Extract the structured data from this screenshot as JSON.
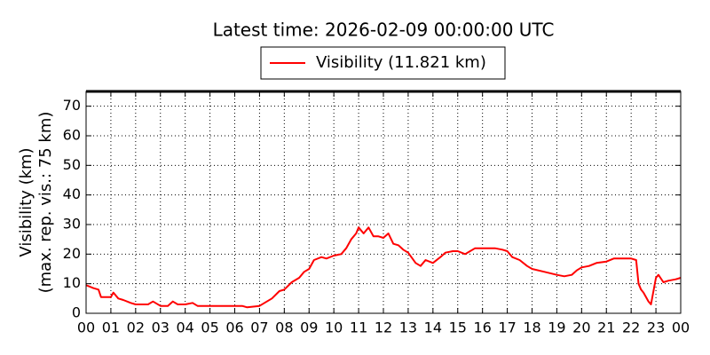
{
  "chart_data": {
    "type": "line",
    "title": "Latest time: 2026-02-09 00:00:00 UTC",
    "ylabel_lines": [
      "Visibility (km)",
      "(max. rep. vis.: 75 km)"
    ],
    "x": [
      0,
      0.3,
      0.5,
      0.6,
      1,
      1.1,
      1.3,
      1.5,
      1.8,
      2,
      2.5,
      2.7,
      3,
      3.3,
      3.5,
      3.7,
      4,
      4.3,
      4.5,
      5,
      5.5,
      6,
      6.3,
      6.5,
      7,
      7.2,
      7.5,
      7.8,
      8,
      8.3,
      8.6,
      8.8,
      9,
      9.2,
      9.5,
      9.7,
      10,
      10.3,
      10.5,
      10.7,
      10.9,
      11,
      11.2,
      11.4,
      11.6,
      11.8,
      12,
      12.2,
      12.4,
      12.6,
      12.8,
      13,
      13.3,
      13.5,
      13.7,
      14,
      14.3,
      14.5,
      14.8,
      15,
      15.3,
      15.5,
      15.7,
      16,
      16.5,
      16.8,
      17,
      17.2,
      17.5,
      17.8,
      18,
      18.5,
      19,
      19.3,
      19.6,
      19.8,
      20,
      20.3,
      20.6,
      21,
      21.3,
      21.6,
      22,
      22.2,
      22.3,
      22.4,
      22.5,
      22.7,
      22.8,
      23,
      23.1,
      23.3,
      23.5,
      23.8,
      24
    ],
    "series": [
      {
        "name": "Visibility (11.821 km)",
        "color": "#ff0000",
        "values": [
          9.5,
          8.5,
          8,
          5.5,
          5.5,
          7,
          5,
          4.5,
          3.5,
          3,
          3,
          4,
          2.5,
          2.5,
          4,
          3,
          3,
          3.5,
          2.5,
          2.5,
          2.5,
          2.5,
          2.5,
          2,
          2.5,
          3.5,
          5,
          7.5,
          8,
          10.5,
          12,
          14,
          15,
          18,
          19,
          18.5,
          19.5,
          20,
          22,
          25,
          27,
          29,
          27,
          29,
          26,
          26,
          25.5,
          27,
          23.5,
          23,
          21.5,
          20.5,
          17,
          16,
          18,
          17,
          19,
          20.5,
          21,
          21,
          20,
          21,
          22,
          22,
          22,
          21.5,
          21,
          19,
          18,
          16,
          15,
          14,
          13,
          12.5,
          13,
          14.5,
          15.5,
          16,
          17,
          17.5,
          18.5,
          18.5,
          18.5,
          18,
          10,
          8,
          7,
          4,
          3,
          12,
          13,
          10.5,
          11,
          11.5,
          12
        ]
      }
    ],
    "xlim": [
      0,
      24
    ],
    "xticks": [
      {
        "value": 0,
        "label": "00"
      },
      {
        "value": 1,
        "label": "01"
      },
      {
        "value": 2,
        "label": "02"
      },
      {
        "value": 3,
        "label": "03"
      },
      {
        "value": 4,
        "label": "04"
      },
      {
        "value": 5,
        "label": "05"
      },
      {
        "value": 6,
        "label": "06"
      },
      {
        "value": 7,
        "label": "07"
      },
      {
        "value": 8,
        "label": "08"
      },
      {
        "value": 9,
        "label": "09"
      },
      10,
      11,
      12,
      13,
      14,
      15,
      16,
      17,
      18,
      19,
      20,
      21,
      22,
      23,
      {
        "value": 24,
        "label": "00"
      }
    ],
    "ylim": [
      0,
      75
    ],
    "yticks": [
      0,
      10,
      20,
      30,
      40,
      50,
      60,
      70
    ],
    "grid": true,
    "legend": "top"
  }
}
